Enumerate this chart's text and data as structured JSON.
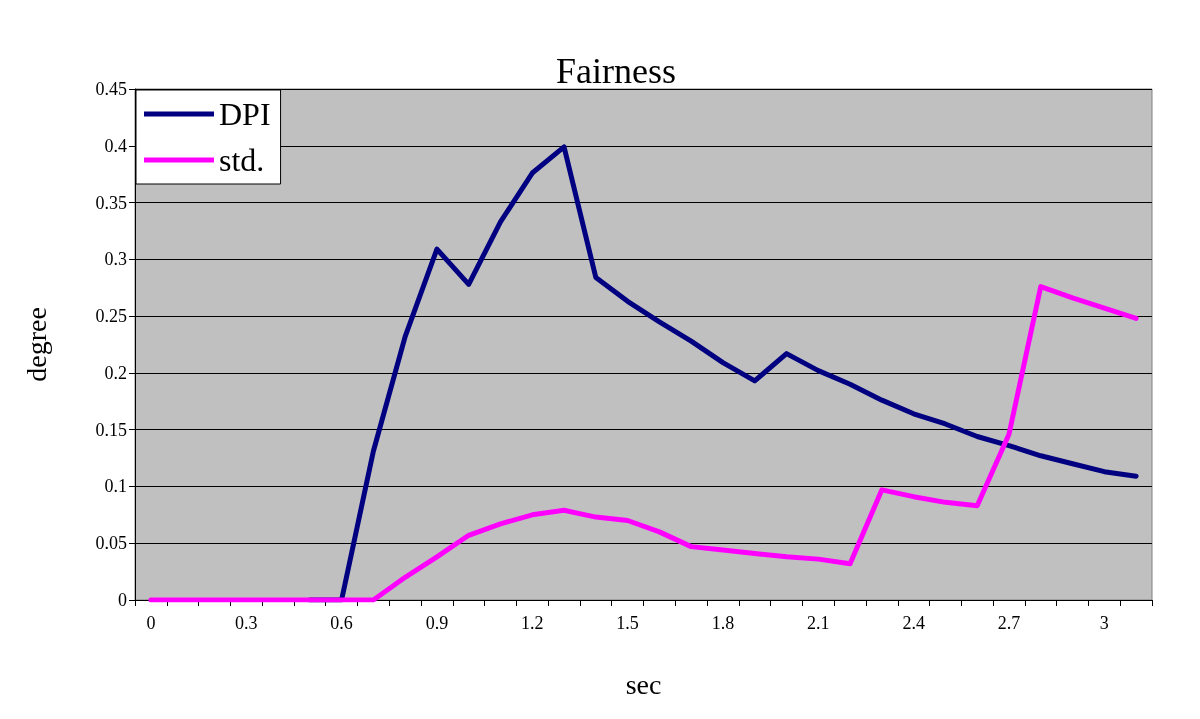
{
  "chart_data": {
    "type": "line",
    "title": "Fairness",
    "xlabel": "sec",
    "ylabel": "degree",
    "categories": [
      "0",
      null,
      null,
      "0.3",
      null,
      null,
      "0.6",
      null,
      null,
      "0.9",
      null,
      null,
      "1.2",
      null,
      null,
      "1.5",
      null,
      null,
      "1.8",
      null,
      null,
      "2.1",
      null,
      null,
      "2.4",
      null,
      null,
      "2.7",
      null,
      null,
      "3",
      null
    ],
    "series": [
      {
        "name": "DPI",
        "color": "#000080",
        "values": [
          null,
          null,
          null,
          null,
          null,
          0,
          0,
          0.131,
          0.232,
          0.309,
          0.278,
          0.333,
          0.376,
          0.399,
          0.284,
          0.263,
          0.245,
          0.228,
          0.209,
          0.193,
          0.217,
          0.202,
          0.19,
          0.176,
          0.164,
          0.155,
          0.144,
          0.136,
          0.127,
          0.12,
          0.113,
          0.109
        ]
      },
      {
        "name": "std.",
        "color": "#ff00ff",
        "values": [
          0,
          0,
          0,
          0,
          0,
          0,
          0,
          0,
          0.02,
          0.038,
          0.057,
          0.067,
          0.075,
          0.079,
          0.073,
          0.07,
          0.06,
          0.047,
          0.044,
          0.041,
          0.038,
          0.036,
          0.032,
          0.097,
          0.091,
          0.086,
          0.083,
          0.146,
          0.276,
          0.266,
          0.257,
          0.248
        ]
      }
    ],
    "ylim": [
      0,
      0.45
    ],
    "yticks": [
      0,
      0.05,
      0.1,
      0.15,
      0.2,
      0.25,
      0.3,
      0.35,
      0.4,
      0.45
    ],
    "grid": "y",
    "legend": "top left",
    "marker": "none",
    "line_style": "solid"
  }
}
